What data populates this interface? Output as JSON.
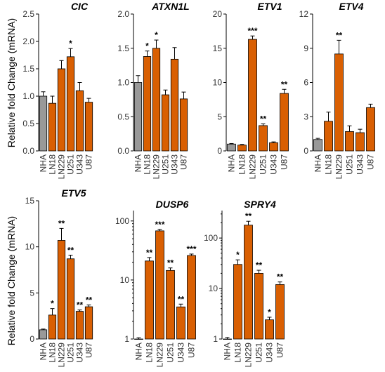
{
  "ylabel": "Relative fold Change (mRNA)",
  "chart_data": [
    {
      "type": "bar",
      "title": "CIC",
      "scale": "linear",
      "categories": [
        "NHA",
        "LN18",
        "LN229",
        "U251",
        "U343",
        "U87"
      ],
      "values": [
        1.0,
        0.87,
        1.5,
        1.72,
        1.1,
        0.89
      ],
      "errors": [
        0.08,
        0.13,
        0.15,
        0.15,
        0.15,
        0.07
      ],
      "stars": [
        "",
        "",
        "",
        "*",
        "",
        ""
      ],
      "ylim": [
        0,
        2.5
      ],
      "yticks": [
        "0.0",
        "0.5",
        "1.0",
        "1.5",
        "2.0",
        "2.5"
      ],
      "tickvals": [
        0,
        0.5,
        1,
        1.5,
        2,
        2.5
      ],
      "colors": [
        "#999999",
        "#d95f02",
        "#d95f02",
        "#d95f02",
        "#d95f02",
        "#d95f02"
      ]
    },
    {
      "type": "bar",
      "title": "ATXN1L",
      "scale": "linear",
      "categories": [
        "NHA",
        "LN18",
        "LN229",
        "U251",
        "U343",
        "U87"
      ],
      "values": [
        1.0,
        1.38,
        1.5,
        0.82,
        1.34,
        0.76
      ],
      "errors": [
        0.1,
        0.08,
        0.12,
        0.07,
        0.17,
        0.1
      ],
      "stars": [
        "",
        "*",
        "*",
        "",
        "",
        ""
      ],
      "ylim": [
        0,
        2.0
      ],
      "yticks": [
        "0.0",
        "0.5",
        "1.0",
        "1.5",
        "2.0"
      ],
      "tickvals": [
        0,
        0.5,
        1,
        1.5,
        2
      ],
      "colors": [
        "#999999",
        "#d95f02",
        "#d95f02",
        "#d95f02",
        "#d95f02",
        "#d95f02"
      ]
    },
    {
      "type": "bar",
      "title": "ETV1",
      "scale": "linear",
      "categories": [
        "NHA",
        "LN18",
        "LN229",
        "U251",
        "U343",
        "U87"
      ],
      "values": [
        1.0,
        0.85,
        16.3,
        3.7,
        1.2,
        8.4
      ],
      "errors": [
        0.08,
        0.1,
        0.5,
        0.25,
        0.12,
        0.6
      ],
      "stars": [
        "",
        "",
        "***",
        "**",
        "",
        "**"
      ],
      "ylim": [
        0,
        20
      ],
      "yticks": [
        "0",
        "5",
        "10",
        "15",
        "20"
      ],
      "tickvals": [
        0,
        5,
        10,
        15,
        20
      ],
      "colors": [
        "#999999",
        "#d95f02",
        "#d95f02",
        "#d95f02",
        "#d95f02",
        "#d95f02"
      ]
    },
    {
      "type": "bar",
      "title": "ETV4",
      "scale": "linear",
      "categories": [
        "NHA",
        "LN18",
        "LN229",
        "U251",
        "U343",
        "U87"
      ],
      "values": [
        1.0,
        2.6,
        8.5,
        1.7,
        1.6,
        3.8
      ],
      "errors": [
        0.1,
        0.8,
        1.2,
        0.5,
        0.3,
        0.3
      ],
      "stars": [
        "",
        "",
        "**",
        "",
        "",
        ""
      ],
      "ylim": [
        0,
        12
      ],
      "yticks": [
        "0",
        "3",
        "6",
        "9",
        "12"
      ],
      "tickvals": [
        0,
        3,
        6,
        9,
        12
      ],
      "colors": [
        "#999999",
        "#d95f02",
        "#d95f02",
        "#d95f02",
        "#d95f02",
        "#d95f02"
      ]
    },
    {
      "type": "bar",
      "title": "ETV5",
      "scale": "linear",
      "categories": [
        "NHA",
        "LN18",
        "LN229",
        "U251",
        "U343",
        "U87"
      ],
      "values": [
        1.0,
        2.6,
        10.7,
        8.7,
        3.0,
        3.5
      ],
      "errors": [
        0.08,
        0.7,
        1.3,
        0.4,
        0.15,
        0.2
      ],
      "stars": [
        "",
        "*",
        "**",
        "**",
        "**",
        "**"
      ],
      "ylim": [
        0,
        15
      ],
      "yticks": [
        "0",
        "5",
        "10",
        "15"
      ],
      "tickvals": [
        0,
        5,
        10,
        15
      ],
      "colors": [
        "#999999",
        "#d95f02",
        "#d95f02",
        "#d95f02",
        "#d95f02",
        "#d95f02"
      ]
    },
    {
      "type": "bar",
      "title": "DUSP6",
      "scale": "log",
      "categories": [
        "NHA",
        "LN18",
        "LN229",
        "U251",
        "U343",
        "U87"
      ],
      "values": [
        1.0,
        21,
        68,
        14.5,
        3.5,
        26
      ],
      "errors": [
        0.05,
        3,
        4,
        1.5,
        0.4,
        1.5
      ],
      "stars": [
        "",
        "**",
        "***",
        "**",
        "**",
        "***"
      ],
      "ylim": [
        1,
        150
      ],
      "yticks": [
        "1",
        "10",
        "100"
      ],
      "tickvals": [
        1,
        10,
        100
      ],
      "colors": [
        "#999999",
        "#d95f02",
        "#d95f02",
        "#d95f02",
        "#d95f02",
        "#d95f02"
      ]
    },
    {
      "type": "bar",
      "title": "SPRY4",
      "scale": "log",
      "categories": [
        "NHA",
        "LN18",
        "LN229",
        "U251",
        "U343",
        "U87"
      ],
      "values": [
        1.0,
        30,
        180,
        20,
        2.4,
        12
      ],
      "errors": [
        0.07,
        7,
        35,
        3,
        0.3,
        1.5
      ],
      "stars": [
        "",
        "*",
        "**",
        "**",
        "*",
        "**"
      ],
      "ylim": [
        1,
        350
      ],
      "yticks": [
        "1",
        "10",
        "100"
      ],
      "tickvals": [
        1,
        10,
        100
      ],
      "colors": [
        "#999999",
        "#d95f02",
        "#d95f02",
        "#d95f02",
        "#d95f02",
        "#d95f02"
      ]
    }
  ]
}
